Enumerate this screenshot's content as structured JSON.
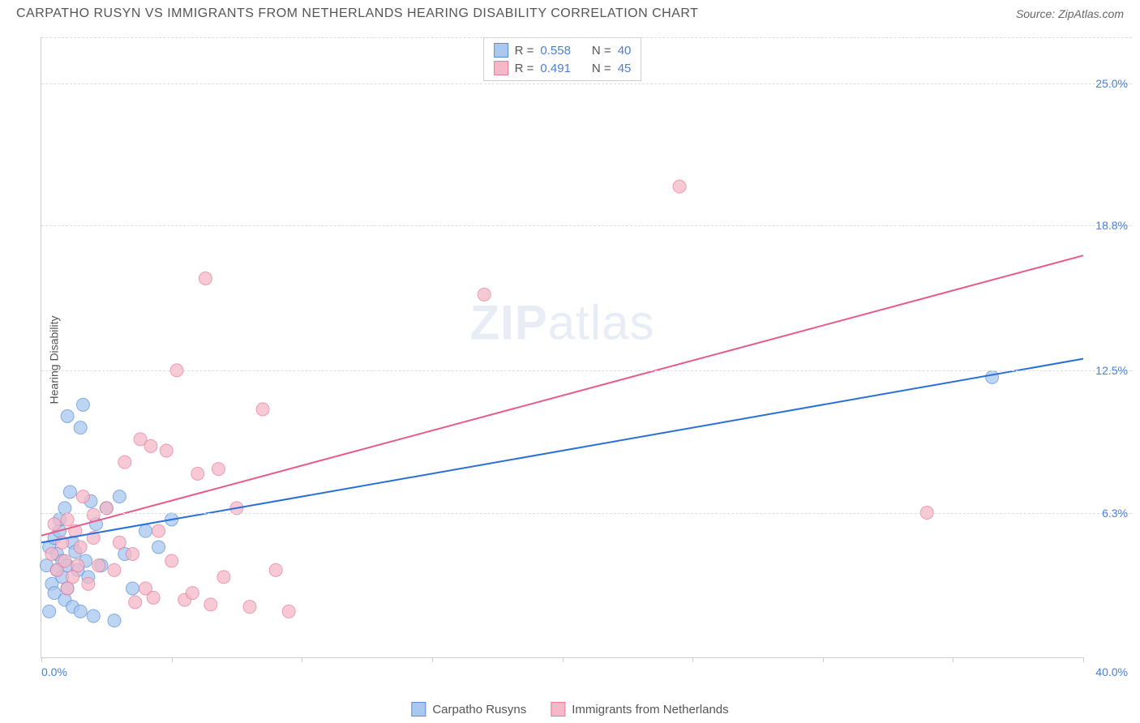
{
  "header": {
    "title": "CARPATHO RUSYN VS IMMIGRANTS FROM NETHERLANDS HEARING DISABILITY CORRELATION CHART",
    "source_prefix": "Source: ",
    "source_name": "ZipAtlas.com"
  },
  "chart": {
    "type": "scatter",
    "ylabel": "Hearing Disability",
    "xlim": [
      0,
      40
    ],
    "ylim": [
      0,
      27
    ],
    "x_min_label": "0.0%",
    "x_max_label": "40.0%",
    "y_grid": [
      {
        "val": 6.3,
        "label": "6.3%"
      },
      {
        "val": 12.5,
        "label": "12.5%"
      },
      {
        "val": 18.8,
        "label": "18.8%"
      },
      {
        "val": 25.0,
        "label": "25.0%"
      }
    ],
    "x_ticks": [
      0,
      5,
      10,
      15,
      20,
      25,
      30,
      35,
      40
    ],
    "background_color": "#ffffff",
    "grid_color": "#dddddd",
    "watermark": "ZIPatlas",
    "series": [
      {
        "name": "Carpatho Rusyns",
        "fill": "#a8c8f0",
        "stroke": "#5a8fd8",
        "marker_radius": 8,
        "line_color": "#2a6fd8",
        "line_width": 2,
        "trend": {
          "x1": 0,
          "y1": 5.0,
          "x2": 40,
          "y2": 13.0
        },
        "R": "0.558",
        "N": "40",
        "points": [
          [
            0.2,
            4.0
          ],
          [
            0.3,
            4.8
          ],
          [
            0.4,
            3.2
          ],
          [
            0.5,
            5.2
          ],
          [
            0.5,
            2.8
          ],
          [
            0.6,
            4.5
          ],
          [
            0.6,
            3.8
          ],
          [
            0.7,
            5.5
          ],
          [
            0.8,
            3.5
          ],
          [
            0.8,
            4.2
          ],
          [
            0.9,
            2.5
          ],
          [
            0.9,
            6.5
          ],
          [
            1.0,
            4.0
          ],
          [
            1.0,
            3.0
          ],
          [
            1.1,
            7.2
          ],
          [
            1.2,
            2.2
          ],
          [
            1.2,
            5.0
          ],
          [
            1.3,
            4.6
          ],
          [
            1.4,
            3.8
          ],
          [
            1.5,
            10.0
          ],
          [
            1.5,
            2.0
          ],
          [
            1.6,
            11.0
          ],
          [
            1.7,
            4.2
          ],
          [
            1.8,
            3.5
          ],
          [
            1.9,
            6.8
          ],
          [
            2.0,
            1.8
          ],
          [
            2.1,
            5.8
          ],
          [
            2.3,
            4.0
          ],
          [
            2.5,
            6.5
          ],
          [
            2.8,
            1.6
          ],
          [
            3.0,
            7.0
          ],
          [
            3.2,
            4.5
          ],
          [
            3.5,
            3.0
          ],
          [
            4.0,
            5.5
          ],
          [
            4.5,
            4.8
          ],
          [
            5.0,
            6.0
          ],
          [
            1.0,
            10.5
          ],
          [
            0.7,
            6.0
          ],
          [
            36.5,
            12.2
          ],
          [
            0.3,
            2.0
          ]
        ]
      },
      {
        "name": "Immigrants from Netherlands",
        "fill": "#f5b8c8",
        "stroke": "#e87a9a",
        "marker_radius": 8,
        "line_color": "#e85a8a",
        "line_width": 2,
        "trend": {
          "x1": 0,
          "y1": 5.3,
          "x2": 40,
          "y2": 17.5
        },
        "R": "0.491",
        "N": "45",
        "points": [
          [
            0.4,
            4.5
          ],
          [
            0.6,
            3.8
          ],
          [
            0.8,
            5.0
          ],
          [
            0.9,
            4.2
          ],
          [
            1.0,
            6.0
          ],
          [
            1.2,
            3.5
          ],
          [
            1.3,
            5.5
          ],
          [
            1.5,
            4.8
          ],
          [
            1.6,
            7.0
          ],
          [
            1.8,
            3.2
          ],
          [
            2.0,
            5.2
          ],
          [
            2.2,
            4.0
          ],
          [
            2.5,
            6.5
          ],
          [
            2.8,
            3.8
          ],
          [
            3.0,
            5.0
          ],
          [
            3.2,
            8.5
          ],
          [
            3.5,
            4.5
          ],
          [
            3.8,
            9.5
          ],
          [
            4.0,
            3.0
          ],
          [
            4.2,
            9.2
          ],
          [
            4.5,
            5.5
          ],
          [
            4.8,
            9.0
          ],
          [
            5.0,
            4.2
          ],
          [
            5.2,
            12.5
          ],
          [
            5.5,
            2.5
          ],
          [
            6.0,
            8.0
          ],
          [
            6.3,
            16.5
          ],
          [
            6.5,
            2.3
          ],
          [
            6.8,
            8.2
          ],
          [
            7.0,
            3.5
          ],
          [
            7.5,
            6.5
          ],
          [
            8.0,
            2.2
          ],
          [
            8.5,
            10.8
          ],
          [
            9.0,
            3.8
          ],
          [
            9.5,
            2.0
          ],
          [
            5.8,
            2.8
          ],
          [
            4.3,
            2.6
          ],
          [
            3.6,
            2.4
          ],
          [
            17.0,
            15.8
          ],
          [
            24.5,
            20.5
          ],
          [
            34.0,
            6.3
          ],
          [
            1.4,
            4.0
          ],
          [
            2.0,
            6.2
          ],
          [
            1.0,
            3.0
          ],
          [
            0.5,
            5.8
          ]
        ]
      }
    ],
    "legend": {
      "R_label": "R =",
      "N_label": "N ="
    }
  }
}
